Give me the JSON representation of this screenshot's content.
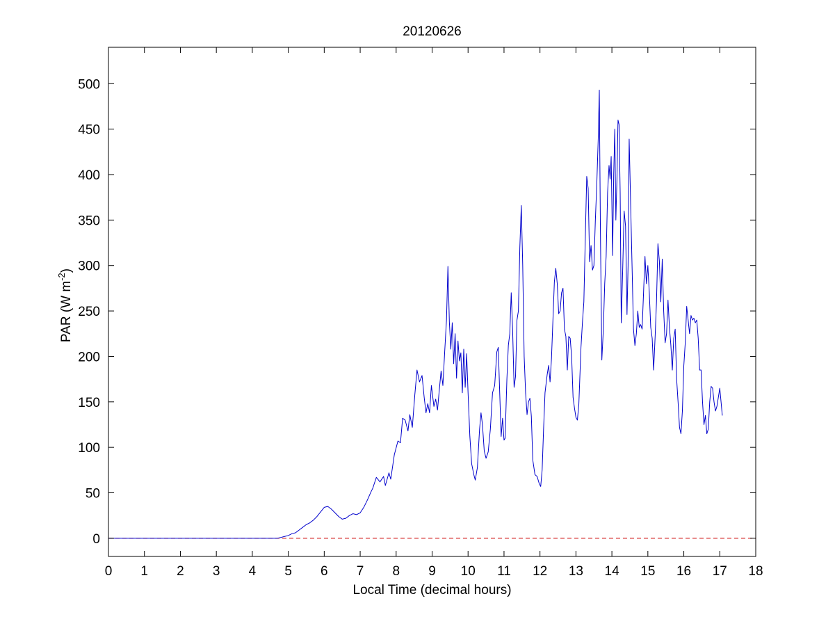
{
  "chart_data": {
    "type": "line",
    "title": "20120626",
    "xlabel": "Local Time (decimal hours)",
    "ylabel": "PAR (W m",
    "ylabel_exponent": "-2",
    "ylabel_suffix": ")",
    "xlim": [
      0,
      18
    ],
    "ylim": [
      -20,
      540
    ],
    "xticks": [
      "0",
      "1",
      "2",
      "3",
      "4",
      "5",
      "6",
      "7",
      "8",
      "9",
      "10",
      "11",
      "12",
      "13",
      "14",
      "15",
      "16",
      "17",
      "18"
    ],
    "yticks": [
      "0",
      "50",
      "100",
      "150",
      "200",
      "250",
      "300",
      "350",
      "400",
      "450",
      "500"
    ],
    "grid": false,
    "reference_line": {
      "y": 0,
      "color": "#cc0000",
      "style": "dashed"
    },
    "series": [
      {
        "color": "#0000cc",
        "points": [
          [
            0,
            0
          ],
          [
            4.7,
            0
          ],
          [
            4.8,
            1
          ],
          [
            4.9,
            2
          ],
          [
            5.0,
            3
          ],
          [
            5.1,
            5
          ],
          [
            5.2,
            6
          ],
          [
            5.3,
            9
          ],
          [
            5.4,
            12
          ],
          [
            5.5,
            15
          ],
          [
            5.6,
            17
          ],
          [
            5.7,
            20
          ],
          [
            5.8,
            24
          ],
          [
            5.9,
            29
          ],
          [
            6.0,
            34
          ],
          [
            6.1,
            35
          ],
          [
            6.2,
            32
          ],
          [
            6.3,
            28
          ],
          [
            6.4,
            24
          ],
          [
            6.5,
            21
          ],
          [
            6.6,
            22
          ],
          [
            6.7,
            25
          ],
          [
            6.8,
            27
          ],
          [
            6.9,
            26
          ],
          [
            7.0,
            28
          ],
          [
            7.1,
            34
          ],
          [
            7.2,
            42
          ],
          [
            7.3,
            51
          ],
          [
            7.35,
            55
          ],
          [
            7.45,
            67
          ],
          [
            7.55,
            62
          ],
          [
            7.65,
            68
          ],
          [
            7.7,
            58
          ],
          [
            7.8,
            72
          ],
          [
            7.85,
            65
          ],
          [
            7.95,
            92
          ],
          [
            8.05,
            107
          ],
          [
            8.12,
            105
          ],
          [
            8.18,
            132
          ],
          [
            8.25,
            130
          ],
          [
            8.33,
            118
          ],
          [
            8.38,
            136
          ],
          [
            8.45,
            122
          ],
          [
            8.52,
            158
          ],
          [
            8.58,
            185
          ],
          [
            8.65,
            172
          ],
          [
            8.72,
            179
          ],
          [
            8.78,
            155
          ],
          [
            8.83,
            138
          ],
          [
            8.88,
            148
          ],
          [
            8.93,
            138
          ],
          [
            8.98,
            168
          ],
          [
            9.05,
            145
          ],
          [
            9.1,
            153
          ],
          [
            9.15,
            141
          ],
          [
            9.2,
            163
          ],
          [
            9.25,
            184
          ],
          [
            9.3,
            168
          ],
          [
            9.35,
            205
          ],
          [
            9.4,
            240
          ],
          [
            9.44,
            299
          ],
          [
            9.48,
            238
          ],
          [
            9.52,
            208
          ],
          [
            9.56,
            237
          ],
          [
            9.6,
            192
          ],
          [
            9.64,
            225
          ],
          [
            9.68,
            176
          ],
          [
            9.72,
            217
          ],
          [
            9.76,
            195
          ],
          [
            9.8,
            204
          ],
          [
            9.84,
            160
          ],
          [
            9.88,
            208
          ],
          [
            9.92,
            166
          ],
          [
            9.96,
            203
          ],
          [
            10.0,
            160
          ],
          [
            10.05,
            112
          ],
          [
            10.1,
            82
          ],
          [
            10.16,
            70
          ],
          [
            10.2,
            64
          ],
          [
            10.26,
            78
          ],
          [
            10.32,
            120
          ],
          [
            10.36,
            138
          ],
          [
            10.4,
            125
          ],
          [
            10.45,
            96
          ],
          [
            10.5,
            88
          ],
          [
            10.56,
            95
          ],
          [
            10.62,
            120
          ],
          [
            10.68,
            160
          ],
          [
            10.74,
            168
          ],
          [
            10.8,
            205
          ],
          [
            10.84,
            210
          ],
          [
            10.88,
            160
          ],
          [
            10.92,
            112
          ],
          [
            10.96,
            132
          ],
          [
            11.0,
            108
          ],
          [
            11.03,
            110
          ],
          [
            11.08,
            175
          ],
          [
            11.12,
            212
          ],
          [
            11.16,
            225
          ],
          [
            11.2,
            270
          ],
          [
            11.24,
            228
          ],
          [
            11.28,
            166
          ],
          [
            11.32,
            178
          ],
          [
            11.36,
            240
          ],
          [
            11.4,
            250
          ],
          [
            11.44,
            320
          ],
          [
            11.48,
            366
          ],
          [
            11.52,
            300
          ],
          [
            11.56,
            200
          ],
          [
            11.6,
            160
          ],
          [
            11.64,
            136
          ],
          [
            11.68,
            150
          ],
          [
            11.72,
            154
          ],
          [
            11.76,
            134
          ],
          [
            11.8,
            86
          ],
          [
            11.86,
            70
          ],
          [
            11.92,
            68
          ],
          [
            11.98,
            60
          ],
          [
            12.02,
            57
          ],
          [
            12.06,
            75
          ],
          [
            12.1,
            120
          ],
          [
            12.14,
            160
          ],
          [
            12.2,
            180
          ],
          [
            12.24,
            190
          ],
          [
            12.28,
            172
          ],
          [
            12.32,
            198
          ],
          [
            12.36,
            240
          ],
          [
            12.4,
            282
          ],
          [
            12.44,
            297
          ],
          [
            12.48,
            280
          ],
          [
            12.52,
            247
          ],
          [
            12.56,
            250
          ],
          [
            12.6,
            270
          ],
          [
            12.64,
            275
          ],
          [
            12.68,
            230
          ],
          [
            12.72,
            222
          ],
          [
            12.76,
            185
          ],
          [
            12.8,
            222
          ],
          [
            12.84,
            220
          ],
          [
            12.88,
            200
          ],
          [
            12.92,
            155
          ],
          [
            12.96,
            143
          ],
          [
            13.0,
            133
          ],
          [
            13.04,
            130
          ],
          [
            13.08,
            147
          ],
          [
            13.14,
            210
          ],
          [
            13.18,
            237
          ],
          [
            13.22,
            260
          ],
          [
            13.26,
            330
          ],
          [
            13.3,
            398
          ],
          [
            13.34,
            385
          ],
          [
            13.38,
            304
          ],
          [
            13.42,
            322
          ],
          [
            13.46,
            295
          ],
          [
            13.5,
            300
          ],
          [
            13.54,
            350
          ],
          [
            13.58,
            390
          ],
          [
            13.62,
            440
          ],
          [
            13.65,
            493
          ],
          [
            13.68,
            340
          ],
          [
            13.72,
            196
          ],
          [
            13.76,
            228
          ],
          [
            13.8,
            280
          ],
          [
            13.84,
            310
          ],
          [
            13.88,
            380
          ],
          [
            13.92,
            410
          ],
          [
            13.95,
            395
          ],
          [
            13.98,
            420
          ],
          [
            14.02,
            311
          ],
          [
            14.05,
            400
          ],
          [
            14.08,
            450
          ],
          [
            14.11,
            350
          ],
          [
            14.14,
            395
          ],
          [
            14.17,
            460
          ],
          [
            14.2,
            455
          ],
          [
            14.23,
            380
          ],
          [
            14.26,
            237
          ],
          [
            14.3,
            295
          ],
          [
            14.34,
            360
          ],
          [
            14.38,
            343
          ],
          [
            14.42,
            246
          ],
          [
            14.45,
            300
          ],
          [
            14.48,
            439
          ],
          [
            14.52,
            370
          ],
          [
            14.56,
            300
          ],
          [
            14.6,
            230
          ],
          [
            14.64,
            212
          ],
          [
            14.68,
            225
          ],
          [
            14.72,
            250
          ],
          [
            14.76,
            232
          ],
          [
            14.8,
            235
          ],
          [
            14.84,
            230
          ],
          [
            14.88,
            270
          ],
          [
            14.92,
            310
          ],
          [
            14.96,
            280
          ],
          [
            15.0,
            300
          ],
          [
            15.04,
            270
          ],
          [
            15.08,
            232
          ],
          [
            15.12,
            220
          ],
          [
            15.16,
            185
          ],
          [
            15.2,
            220
          ],
          [
            15.24,
            260
          ],
          [
            15.28,
            324
          ],
          [
            15.32,
            305
          ],
          [
            15.36,
            260
          ],
          [
            15.4,
            307
          ],
          [
            15.44,
            250
          ],
          [
            15.48,
            215
          ],
          [
            15.52,
            225
          ],
          [
            15.56,
            262
          ],
          [
            15.6,
            232
          ],
          [
            15.64,
            212
          ],
          [
            15.68,
            185
          ],
          [
            15.72,
            220
          ],
          [
            15.76,
            230
          ],
          [
            15.8,
            175
          ],
          [
            15.84,
            150
          ],
          [
            15.88,
            122
          ],
          [
            15.92,
            115
          ],
          [
            15.96,
            140
          ],
          [
            16.0,
            190
          ],
          [
            16.04,
            215
          ],
          [
            16.08,
            255
          ],
          [
            16.12,
            240
          ],
          [
            16.16,
            225
          ],
          [
            16.2,
            245
          ],
          [
            16.24,
            240
          ],
          [
            16.28,
            242
          ],
          [
            16.32,
            237
          ],
          [
            16.36,
            240
          ],
          [
            16.4,
            220
          ],
          [
            16.44,
            185
          ],
          [
            16.48,
            185
          ],
          [
            16.52,
            150
          ],
          [
            16.56,
            125
          ],
          [
            16.6,
            135
          ],
          [
            16.64,
            115
          ],
          [
            16.68,
            120
          ],
          [
            16.72,
            150
          ],
          [
            16.76,
            167
          ],
          [
            16.8,
            165
          ],
          [
            16.84,
            150
          ],
          [
            16.88,
            140
          ],
          [
            16.92,
            145
          ],
          [
            16.96,
            155
          ],
          [
            17.0,
            165
          ],
          [
            17.04,
            148
          ],
          [
            17.07,
            135
          ]
        ]
      }
    ]
  }
}
